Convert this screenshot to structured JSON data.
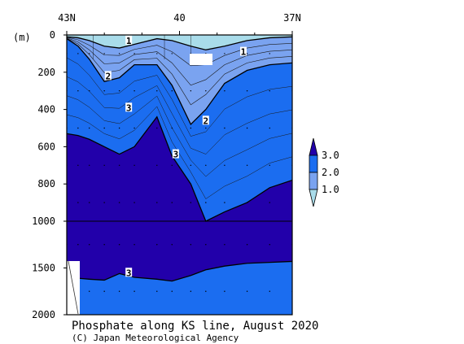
{
  "chart_data": {
    "type": "contour-section",
    "title": "Phosphate along KS line, August 2020",
    "credit": "(C) Japan Meteorological Agency",
    "ylabel": "(m)",
    "x_ticks": [
      "43N",
      "40",
      "37N"
    ],
    "y_ticks": [
      "0",
      "200",
      "400",
      "600",
      "800",
      "1000",
      "1500",
      "2000"
    ],
    "y_scale": "piecewise: 0-1000 m and 1000-2000 m compressed",
    "ylim": [
      0,
      2000
    ],
    "inline_contour_labels": [
      "1",
      "1",
      "2",
      "2",
      "3",
      "3",
      "3"
    ],
    "legend": {
      "levels": [
        "3.0",
        "2.0",
        "1.0"
      ],
      "colors": [
        "#2200aa",
        "#1b6df0",
        "#7aa3f0",
        "#a9dcea"
      ]
    },
    "contours": [
      {
        "level": 1.0,
        "depths": [
          10,
          15,
          30,
          60,
          70,
          50,
          20,
          30,
          60,
          80,
          60,
          30,
          15,
          10
        ]
      },
      {
        "level": 2.0,
        "depths": [
          20,
          60,
          130,
          250,
          230,
          160,
          160,
          270,
          480,
          400,
          260,
          190,
          160,
          150
        ]
      },
      {
        "level": 3.0,
        "depths": [
          530,
          540,
          560,
          600,
          640,
          600,
          440,
          650,
          800,
          1000,
          950,
          900,
          820,
          780
        ]
      },
      {
        "level": 3.0,
        "depths": [
          1600,
          1610,
          1620,
          1630,
          1560,
          1600,
          1620,
          1640,
          1580,
          1520,
          1480,
          1450,
          1440,
          1430
        ]
      }
    ],
    "stations_lat": [
      43.0,
      42.7,
      42.4,
      42.0,
      41.6,
      41.2,
      40.6,
      40.2,
      39.7,
      39.3,
      38.8,
      38.2,
      37.6,
      37.0
    ]
  }
}
